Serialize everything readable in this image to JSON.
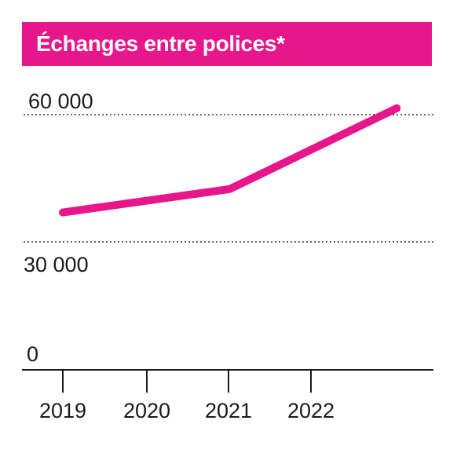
{
  "colors": {
    "accent": "#e8168b",
    "text": "#1a1a1a",
    "grid": "#333333"
  },
  "chart_data": {
    "type": "line",
    "title": "Échanges entre polices*",
    "xlabel": "",
    "ylabel": "",
    "x_ticks": [
      "2019",
      "2020",
      "2021",
      "2022"
    ],
    "y_ticks": [
      "0",
      "30 000",
      "60 000"
    ],
    "y_tick_values": [
      0,
      30000,
      60000
    ],
    "ylim": [
      0,
      60000
    ],
    "grid": "dotted horizontal at 30 000 and 60 000",
    "series": [
      {
        "x": [
          2019,
          2021,
          2023
        ],
        "values": [
          37000,
          42500,
          61500
        ]
      }
    ]
  }
}
